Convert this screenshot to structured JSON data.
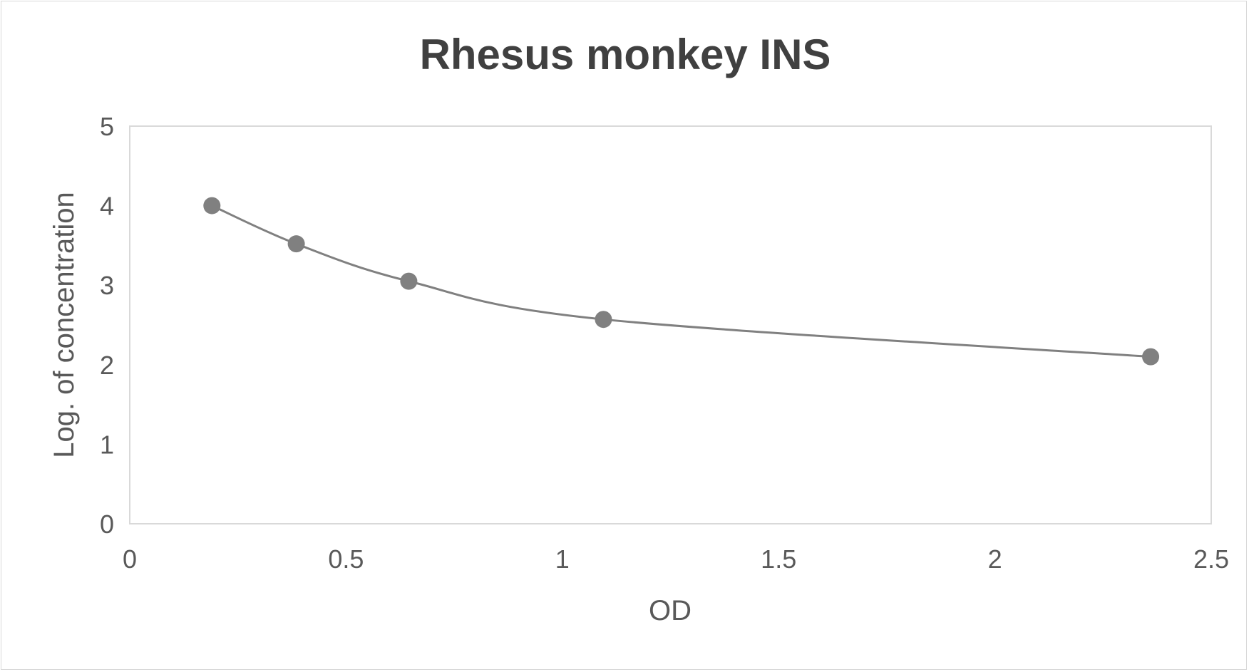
{
  "chart_data": {
    "type": "scatter",
    "title": "Rhesus monkey INS",
    "xlabel": "OD",
    "ylabel": "Log. of concentration",
    "xlim": [
      0,
      2.5
    ],
    "ylim": [
      0,
      5
    ],
    "x_ticks": [
      "0",
      "0.5",
      "1",
      "1.5",
      "2",
      "2.5"
    ],
    "y_ticks": [
      "0",
      "1",
      "2",
      "3",
      "4",
      "5"
    ],
    "grid": false,
    "legend": "none",
    "smooth_line": true,
    "series": [
      {
        "color": "#808080",
        "points": [
          {
            "x": 0.19,
            "y": 4.0
          },
          {
            "x": 0.385,
            "y": 3.52
          },
          {
            "x": 0.645,
            "y": 3.05
          },
          {
            "x": 1.095,
            "y": 2.57
          },
          {
            "x": 2.36,
            "y": 2.1
          }
        ]
      }
    ],
    "colors": {
      "plot_border": "#d9d9d9",
      "title": "#404040",
      "text": "#595959"
    }
  }
}
